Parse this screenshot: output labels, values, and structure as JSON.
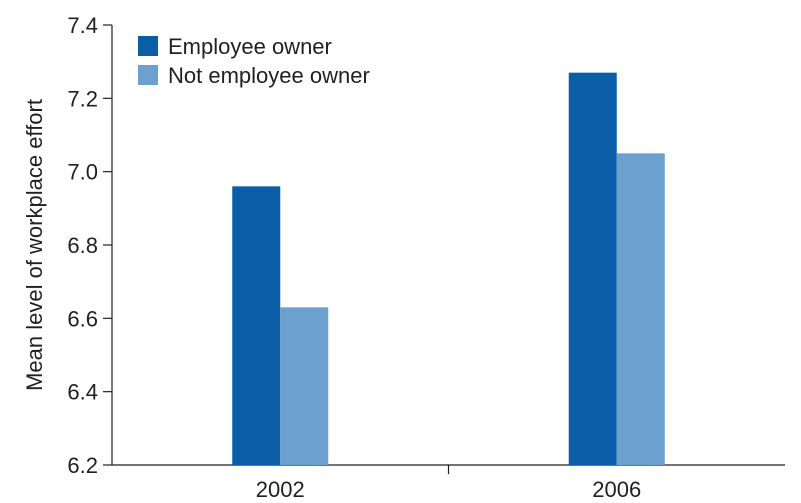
{
  "chart_data": {
    "type": "bar",
    "categories": [
      "2002",
      "2006"
    ],
    "series": [
      {
        "name": "Employee owner",
        "values": [
          6.96,
          7.27
        ],
        "color": "#0a5ea8"
      },
      {
        "name": "Not employee owner",
        "values": [
          6.63,
          7.05
        ],
        "color": "#6ba0cf"
      }
    ],
    "xlabel": "",
    "ylabel": "Mean level of workplace effort",
    "ylim": [
      6.2,
      7.4
    ],
    "yticks": [
      "6.2",
      "6.4",
      "6.6",
      "6.8",
      "7.0",
      "7.2",
      "7.4"
    ],
    "grid": false,
    "legend_position": "top-left"
  }
}
